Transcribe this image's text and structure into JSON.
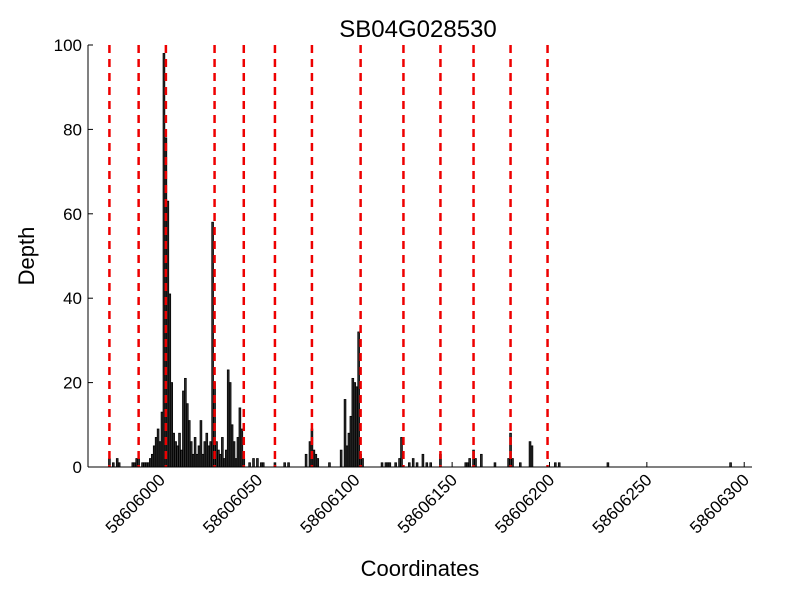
{
  "chart_data": {
    "type": "bar",
    "title": "SB04G028530",
    "xlabel": "Coordinates",
    "ylabel": "Depth",
    "x": [
      58605974,
      58605976,
      58605978,
      58605979,
      58605986,
      58605987,
      58605988,
      58605989,
      58605991,
      58605992,
      58605993,
      58605994,
      58605995,
      58605996,
      58605997,
      58605998,
      58605999,
      58606000,
      58606001,
      58606002,
      58606003,
      58606004,
      58606005,
      58606006,
      58606007,
      58606008,
      58606009,
      58606010,
      58606011,
      58606012,
      58606013,
      58606014,
      58606015,
      58606016,
      58606017,
      58606018,
      58606019,
      58606020,
      58606021,
      58606022,
      58606023,
      58606024,
      58606025,
      58606026,
      58606027,
      58606028,
      58606029,
      58606030,
      58606031,
      58606032,
      58606033,
      58606034,
      58606035,
      58606036,
      58606037,
      58606038,
      58606039,
      58606040,
      58606041,
      58606042,
      58606043,
      58606046,
      58606048,
      58606050,
      58606052,
      58606053,
      58606059,
      58606064,
      58606066,
      58606075,
      58606077,
      58606078,
      58606079,
      58606080,
      58606081,
      58606087,
      58606093,
      58606095,
      58606096,
      58606097,
      58606098,
      58606099,
      58606100,
      58606101,
      58606102,
      58606103,
      58606104,
      58606114,
      58606116,
      58606117,
      58606118,
      58606121,
      58606123,
      58606124,
      58606128,
      58606130,
      58606132,
      58606135,
      58606137,
      58606139,
      58606144,
      58606157,
      58606158,
      58606159,
      58606161,
      58606162,
      58606165,
      58606172,
      58606179,
      58606180,
      58606181,
      58606185,
      58606190,
      58606191,
      58606203,
      58606205,
      58606230,
      58606293
    ],
    "values": [
      2,
      1,
      2,
      1,
      1,
      1,
      2,
      2,
      1,
      1,
      1,
      1,
      2,
      3,
      5,
      7,
      9,
      6,
      13,
      98,
      78,
      63,
      41,
      20,
      8,
      6,
      5,
      8,
      4,
      18,
      21,
      15,
      11,
      6,
      3,
      7,
      3,
      5,
      11,
      3,
      6,
      8,
      5,
      6,
      58,
      20,
      6,
      4,
      3,
      7,
      2,
      4,
      23,
      20,
      10,
      6,
      2,
      7,
      14,
      9,
      2,
      1,
      2,
      2,
      1,
      1,
      1,
      1,
      1,
      3,
      6,
      9,
      4,
      3,
      2,
      1,
      4,
      16,
      5,
      8,
      12,
      21,
      20,
      19,
      32,
      3,
      2,
      1,
      1,
      1,
      1,
      1,
      2,
      7,
      1,
      2,
      1,
      3,
      1,
      1,
      3,
      1,
      1,
      2,
      4,
      2,
      3,
      1,
      2,
      8,
      2,
      1,
      6,
      5,
      1,
      1,
      1,
      1
    ],
    "color": "#333333",
    "vlines": [
      58605974,
      58605989,
      58606003,
      58606028,
      58606043,
      58606059,
      58606078,
      58606103,
      58606125,
      58606144,
      58606161,
      58606180,
      58606199
    ],
    "vline_color": "#ee0000",
    "xlim": [
      58605963,
      58606304
    ],
    "xticks": [
      58606000,
      58606050,
      58606100,
      58606150,
      58606200,
      58606250,
      58606300
    ],
    "ylim": [
      0,
      100
    ],
    "yticks": [
      0,
      20,
      40,
      60,
      80,
      100
    ]
  }
}
